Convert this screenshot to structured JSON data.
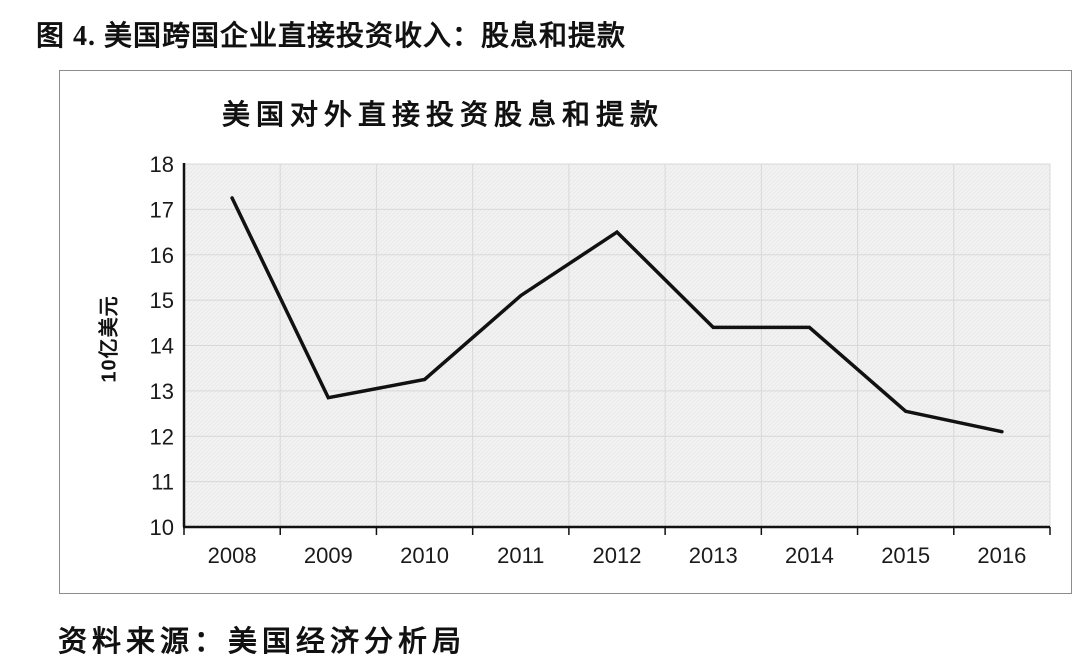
{
  "header": {
    "title": "图 4. 美国跨国企业直接投资收入：股息和提款"
  },
  "chart": {
    "title": "美国对外直接投资股息和提款",
    "ylabel": "10亿美元"
  },
  "chart_data": {
    "type": "line",
    "title": "美国对外直接投资股息和提款",
    "categories": [
      "2008",
      "2009",
      "2010",
      "2011",
      "2012",
      "2013",
      "2014",
      "2015",
      "2016"
    ],
    "values": [
      17.25,
      12.85,
      13.25,
      15.1,
      16.5,
      14.4,
      14.4,
      12.55,
      12.1
    ],
    "xlabel": "",
    "ylabel": "10亿美元",
    "ylim": [
      10,
      18
    ],
    "yticks": [
      10,
      11,
      12,
      13,
      14,
      15,
      16,
      17,
      18
    ],
    "grid": true,
    "legend": "none",
    "line_color": "#111111",
    "plot_bg_color": "#f2f2f2",
    "gridline_color": "#d8d8d8",
    "axis_color": "#111111"
  },
  "footer": {
    "source": "资料来源：美国经济分析局"
  }
}
